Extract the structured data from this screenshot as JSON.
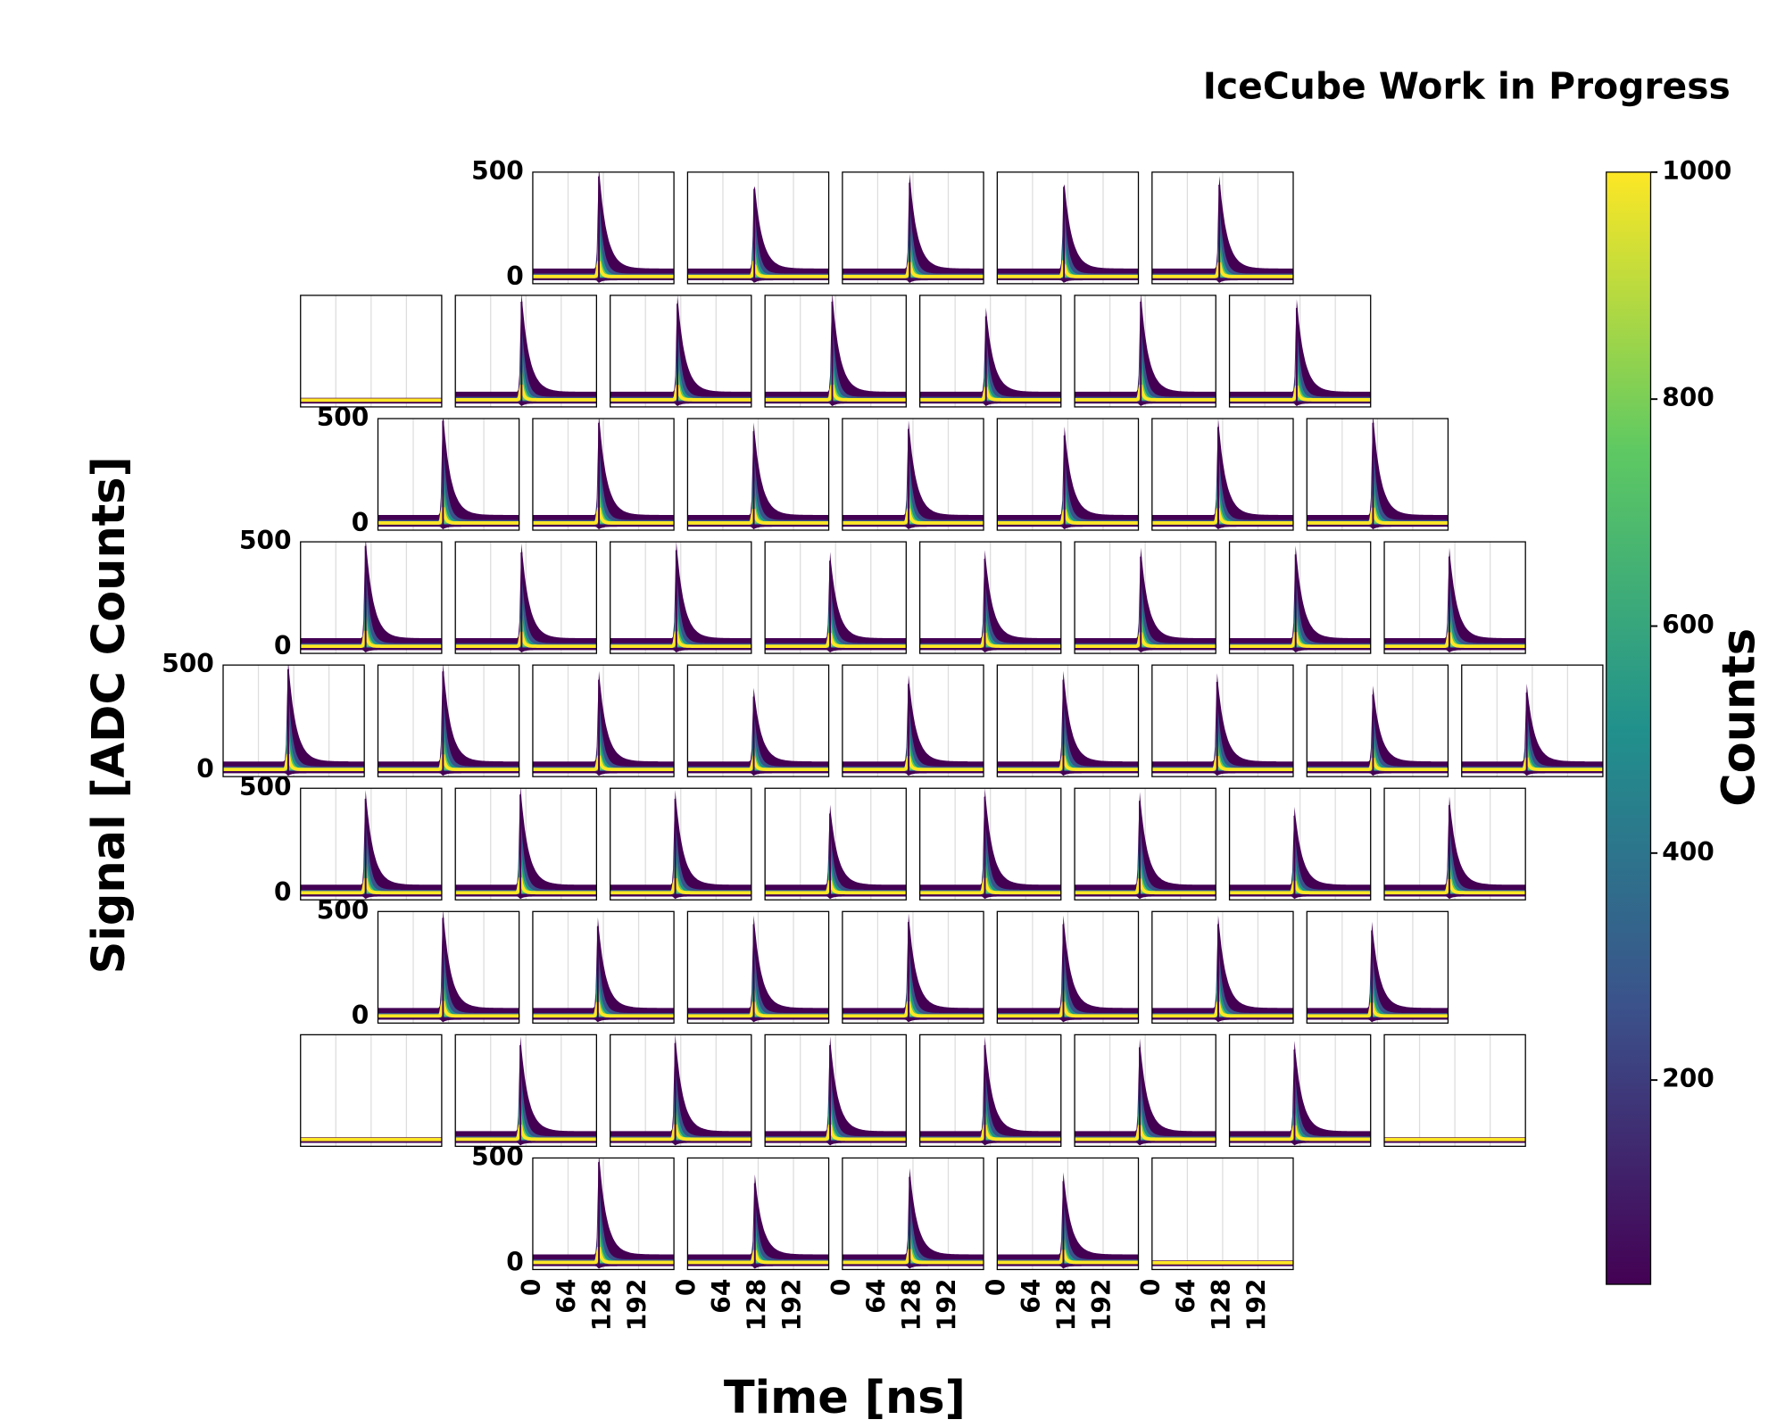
{
  "chart_data": {
    "type": "waveform_grid",
    "title": "IceCube Work in Progress",
    "xlabel": "Time [ns]",
    "ylabel": "Signal [ADC Counts]",
    "xlim": [
      0,
      256
    ],
    "xticks": [
      0,
      64,
      128,
      192
    ],
    "ylim": [
      -30,
      500
    ],
    "yticks": [
      0,
      500
    ],
    "grid": true,
    "rows": [
      [
        {
          "peak_time": 120,
          "peak_amplitude": 480
        },
        {
          "peak_time": 121,
          "peak_amplitude": 420
        },
        {
          "peak_time": 122,
          "peak_amplitude": 450
        },
        {
          "peak_time": 121,
          "peak_amplitude": 430
        },
        {
          "peak_time": 122,
          "peak_amplitude": 440
        }
      ],
      [
        null,
        {
          "peak_time": 120,
          "peak_amplitude": 470
        },
        {
          "peak_time": 122,
          "peak_amplitude": 460
        },
        {
          "peak_time": 122,
          "peak_amplitude": 470
        },
        {
          "peak_time": 120,
          "peak_amplitude": 400
        },
        {
          "peak_time": 120,
          "peak_amplitude": 470
        },
        {
          "peak_time": 122,
          "peak_amplitude": 440
        }
      ],
      [
        {
          "peak_time": 118,
          "peak_amplitude": 490
        },
        {
          "peak_time": 120,
          "peak_amplitude": 480
        },
        {
          "peak_time": 120,
          "peak_amplitude": 440
        },
        {
          "peak_time": 120,
          "peak_amplitude": 450
        },
        {
          "peak_time": 122,
          "peak_amplitude": 420
        },
        {
          "peak_time": 120,
          "peak_amplitude": 460
        },
        {
          "peak_time": 120,
          "peak_amplitude": 480
        }
      ],
      [
        {
          "peak_time": 118,
          "peak_amplitude": 480
        },
        {
          "peak_time": 120,
          "peak_amplitude": 450
        },
        {
          "peak_time": 120,
          "peak_amplitude": 460
        },
        {
          "peak_time": 118,
          "peak_amplitude": 410
        },
        {
          "peak_time": 118,
          "peak_amplitude": 420
        },
        {
          "peak_time": 120,
          "peak_amplitude": 430
        },
        {
          "peak_time": 120,
          "peak_amplitude": 440
        },
        {
          "peak_time": 118,
          "peak_amplitude": 430
        }
      ],
      [
        {
          "peak_time": 118,
          "peak_amplitude": 480
        },
        {
          "peak_time": 118,
          "peak_amplitude": 470
        },
        {
          "peak_time": 120,
          "peak_amplitude": 430
        },
        {
          "peak_time": 120,
          "peak_amplitude": 350
        },
        {
          "peak_time": 120,
          "peak_amplitude": 410
        },
        {
          "peak_time": 120,
          "peak_amplitude": 430
        },
        {
          "peak_time": 118,
          "peak_amplitude": 420
        },
        {
          "peak_time": 120,
          "peak_amplitude": 360
        },
        {
          "peak_time": 118,
          "peak_amplitude": 370
        }
      ],
      [
        {
          "peak_time": 118,
          "peak_amplitude": 450
        },
        {
          "peak_time": 118,
          "peak_amplitude": 470
        },
        {
          "peak_time": 118,
          "peak_amplitude": 450
        },
        {
          "peak_time": 118,
          "peak_amplitude": 380
        },
        {
          "peak_time": 118,
          "peak_amplitude": 460
        },
        {
          "peak_time": 118,
          "peak_amplitude": 440
        },
        {
          "peak_time": 118,
          "peak_amplitude": 370
        },
        {
          "peak_time": 118,
          "peak_amplitude": 420
        }
      ],
      [
        {
          "peak_time": 118,
          "peak_amplitude": 470
        },
        {
          "peak_time": 118,
          "peak_amplitude": 430
        },
        {
          "peak_time": 120,
          "peak_amplitude": 440
        },
        {
          "peak_time": 120,
          "peak_amplitude": 450
        },
        {
          "peak_time": 120,
          "peak_amplitude": 440
        },
        {
          "peak_time": 120,
          "peak_amplitude": 440
        },
        {
          "peak_time": 118,
          "peak_amplitude": 410
        }
      ],
      [
        null,
        {
          "peak_time": 118,
          "peak_amplitude": 450
        },
        {
          "peak_time": 118,
          "peak_amplitude": 460
        },
        {
          "peak_time": 118,
          "peak_amplitude": 450
        },
        {
          "peak_time": 118,
          "peak_amplitude": 450
        },
        {
          "peak_time": 118,
          "peak_amplitude": 440
        },
        {
          "peak_time": 118,
          "peak_amplitude": 430
        },
        null
      ],
      [
        {
          "peak_time": 120,
          "peak_amplitude": 480
        },
        {
          "peak_time": 122,
          "peak_amplitude": 380
        },
        {
          "peak_time": 122,
          "peak_amplitude": 410
        },
        {
          "peak_time": 120,
          "peak_amplitude": 390
        },
        null
      ]
    ],
    "colorbar": {
      "label": "Counts",
      "lim": [
        20,
        1000
      ],
      "ticks": [
        200,
        400,
        600,
        800,
        1000
      ],
      "colors": [
        "#440154",
        "#3b528b",
        "#21918c",
        "#5ec962",
        "#fde725"
      ]
    }
  }
}
